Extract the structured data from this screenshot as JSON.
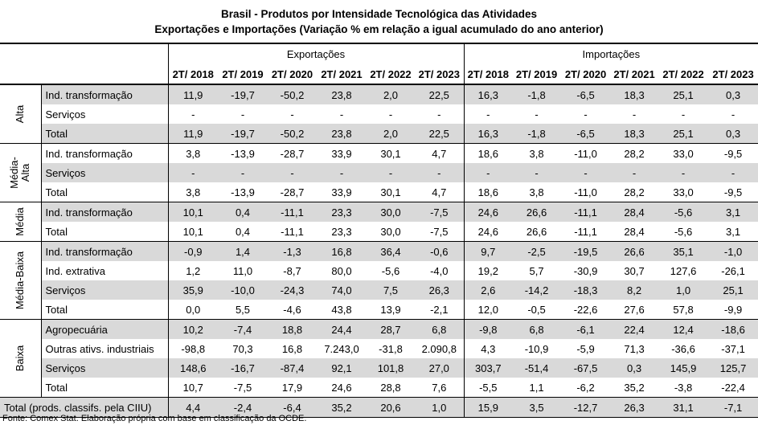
{
  "title_line1": "Brasil - Produtos por Intensidade Tecnológica das Atividades",
  "title_line2": "Exportações e Importações (Variação % em relação a igual acumulado do ano anterior)",
  "col_group_exports": "Exportações",
  "col_group_imports": "Importações",
  "periods": [
    "2T/ 2018",
    "2T/ 2019",
    "2T/ 2020",
    "2T/ 2021",
    "2T/ 2022",
    "2T/ 2023"
  ],
  "groups": [
    {
      "name": "Alta",
      "rows": [
        {
          "label": "Ind. transformação",
          "exp": [
            "11,9",
            "-19,7",
            "-50,2",
            "23,8",
            "2,0",
            "22,5"
          ],
          "imp": [
            "16,3",
            "-1,8",
            "-6,5",
            "18,3",
            "25,1",
            "0,3"
          ]
        },
        {
          "label": "Serviços",
          "exp": [
            "-",
            "-",
            "-",
            "-",
            "-",
            "-"
          ],
          "imp": [
            "-",
            "-",
            "-",
            "-",
            "-",
            "-"
          ]
        },
        {
          "label": "Total",
          "exp": [
            "11,9",
            "-19,7",
            "-50,2",
            "23,8",
            "2,0",
            "22,5"
          ],
          "imp": [
            "16,3",
            "-1,8",
            "-6,5",
            "18,3",
            "25,1",
            "0,3"
          ]
        }
      ]
    },
    {
      "name": "Média-\nAlta",
      "rows": [
        {
          "label": "Ind. transformação",
          "exp": [
            "3,8",
            "-13,9",
            "-28,7",
            "33,9",
            "30,1",
            "4,7"
          ],
          "imp": [
            "18,6",
            "3,8",
            "-11,0",
            "28,2",
            "33,0",
            "-9,5"
          ]
        },
        {
          "label": "Serviços",
          "exp": [
            "-",
            "-",
            "-",
            "-",
            "-",
            "-"
          ],
          "imp": [
            "-",
            "-",
            "-",
            "-",
            "-",
            "-"
          ]
        },
        {
          "label": "Total",
          "exp": [
            "3,8",
            "-13,9",
            "-28,7",
            "33,9",
            "30,1",
            "4,7"
          ],
          "imp": [
            "18,6",
            "3,8",
            "-11,0",
            "28,2",
            "33,0",
            "-9,5"
          ]
        }
      ]
    },
    {
      "name": "Média",
      "rows": [
        {
          "label": "Ind. transformação",
          "exp": [
            "10,1",
            "0,4",
            "-11,1",
            "23,3",
            "30,0",
            "-7,5"
          ],
          "imp": [
            "24,6",
            "26,6",
            "-11,1",
            "28,4",
            "-5,6",
            "3,1"
          ]
        },
        {
          "label": "Total",
          "exp": [
            "10,1",
            "0,4",
            "-11,1",
            "23,3",
            "30,0",
            "-7,5"
          ],
          "imp": [
            "24,6",
            "26,6",
            "-11,1",
            "28,4",
            "-5,6",
            "3,1"
          ]
        }
      ]
    },
    {
      "name": "Média-Baixa",
      "rows": [
        {
          "label": "Ind. transformação",
          "exp": [
            "-0,9",
            "1,4",
            "-1,3",
            "16,8",
            "36,4",
            "-0,6"
          ],
          "imp": [
            "9,7",
            "-2,5",
            "-19,5",
            "26,6",
            "35,1",
            "-1,0"
          ]
        },
        {
          "label": "Ind. extrativa",
          "exp": [
            "1,2",
            "11,0",
            "-8,7",
            "80,0",
            "-5,6",
            "-4,0"
          ],
          "imp": [
            "19,2",
            "5,7",
            "-30,9",
            "30,7",
            "127,6",
            "-26,1"
          ]
        },
        {
          "label": "Serviços",
          "exp": [
            "35,9",
            "-10,0",
            "-24,3",
            "74,0",
            "7,5",
            "26,3"
          ],
          "imp": [
            "2,6",
            "-14,2",
            "-18,3",
            "8,2",
            "1,0",
            "25,1"
          ]
        },
        {
          "label": "Total",
          "exp": [
            "0,0",
            "5,5",
            "-4,6",
            "43,8",
            "13,9",
            "-2,1"
          ],
          "imp": [
            "12,0",
            "-0,5",
            "-22,6",
            "27,6",
            "57,8",
            "-9,9"
          ]
        }
      ]
    },
    {
      "name": "Baixa",
      "rows": [
        {
          "label": "Agropecuária",
          "exp": [
            "10,2",
            "-7,4",
            "18,8",
            "24,4",
            "28,7",
            "6,8"
          ],
          "imp": [
            "-9,8",
            "6,8",
            "-6,1",
            "22,4",
            "12,4",
            "-18,6"
          ]
        },
        {
          "label": "Outras ativs. industriais",
          "exp": [
            "-98,8",
            "70,3",
            "16,8",
            "7.243,0",
            "-31,8",
            "2.090,8"
          ],
          "imp": [
            "4,3",
            "-10,9",
            "-5,9",
            "71,3",
            "-36,6",
            "-37,1"
          ]
        },
        {
          "label": "Serviços",
          "exp": [
            "148,6",
            "-16,7",
            "-87,4",
            "92,1",
            "101,8",
            "27,0"
          ],
          "imp": [
            "303,7",
            "-51,4",
            "-67,5",
            "0,3",
            "145,9",
            "125,7"
          ]
        },
        {
          "label": "Total",
          "exp": [
            "10,7",
            "-7,5",
            "17,9",
            "24,6",
            "28,8",
            "7,6"
          ],
          "imp": [
            "-5,5",
            "1,1",
            "-6,2",
            "35,2",
            "-3,8",
            "-22,4"
          ]
        }
      ]
    }
  ],
  "grand_total": {
    "label": "Total (prods. classifs. pela CIIU)",
    "exp": [
      "4,4",
      "-2,4",
      "-6,4",
      "35,2",
      "20,6",
      "1,0"
    ],
    "imp": [
      "15,9",
      "3,5",
      "-12,7",
      "26,3",
      "31,1",
      "-7,1"
    ]
  },
  "source": "Fonte: Comex Stat. Elaboração própria com base em classificação da OCDE."
}
